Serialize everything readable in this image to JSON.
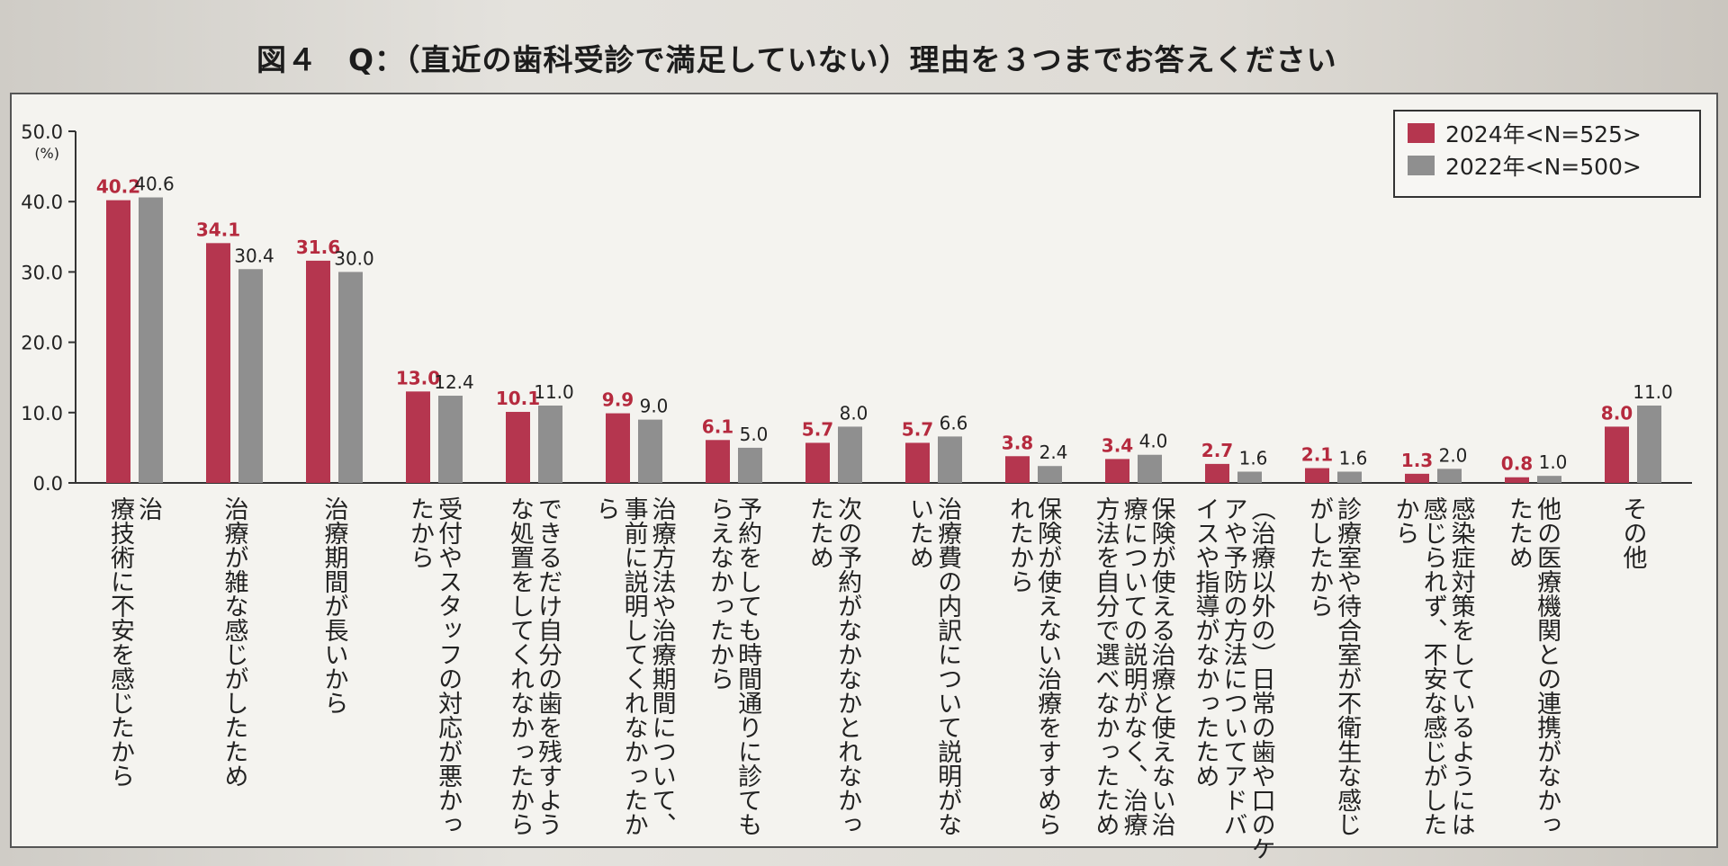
{
  "title": "図４　Q：（直近の歯科受診で満足していない）理由を３つまでお答えください",
  "colors": {
    "series_2024": "#b5364f",
    "series_2022": "#8f8f8f",
    "label_2024": "#b52a3e"
  },
  "chart_data": {
    "type": "bar",
    "ylim": [
      0,
      50
    ],
    "y_unit": "(%)",
    "yticks": [
      "50.0",
      "40.0",
      "30.0",
      "20.0",
      "10.0",
      "0.0"
    ],
    "legend_position": "top-right",
    "categories": [
      "治療技術に不安を感じたから",
      "治療が雑な感じがしたため",
      "治療期間が長いから",
      "受付やスタッフの対応が悪かったから",
      "できるだけ自分の歯を残すような処置をしてくれなかったから",
      "治療方法や治療期間について、事前に説明してくれなかったから",
      "予約をしても時間通りに診てもらえなかったから",
      "次の予約がなかなかとれなかったため",
      "治療費の内訳について説明がないため",
      "保険が使えない治療をすすめられたから",
      "保険が使える治療と使えない治療についての説明がなく、治療方法を自分で選べなかったため",
      "（治療以外の）日常の歯や口のケアや予防の方法についてアドバイスや指導がなかったため",
      "診療室や待合室が不衛生な感じがしたから",
      "感染症対策をしているようには感じられず、不安な感じがしたから",
      "他の医療機関との連携がなかったため",
      "その他"
    ],
    "series": [
      {
        "name": "2024年<N=525>",
        "values": [
          40.2,
          34.1,
          31.6,
          13.0,
          10.1,
          9.9,
          6.1,
          5.7,
          5.7,
          3.8,
          3.4,
          2.7,
          2.1,
          1.3,
          0.8,
          8.0
        ]
      },
      {
        "name": "2022年<N=500>",
        "values": [
          40.6,
          30.4,
          30.0,
          12.4,
          11.0,
          9.0,
          5.0,
          8.0,
          6.6,
          2.4,
          4.0,
          1.6,
          1.6,
          2.0,
          1.0,
          11.0
        ]
      }
    ]
  },
  "labels_display": [
    "治\n療技術に不安を感じたから",
    "治療が雑な感じがしたため",
    "治療期間が長いから",
    "受付やスタッフの対応が悪かっ\nたから",
    "できるだけ自分の歯を残すよう\nな処置をしてくれなかったから",
    "治療方法や治療期間について、\n事前に説明してくれなかったか\nら",
    "予約をしても時間通りに診ても\nらえなかったから",
    "次の予約がなかなかとれなかっ\nたため",
    "治療費の内訳について説明がな\nいため",
    "保険が使えない治療をすすめら\nれたから",
    "保険が使える治療と使えない治\n療についての説明がなく、治療\n方法を自分で選べなかったため",
    "（治療以外の）日常の歯や口のケ\nアや予防の方法についてアドバ\nイスや指導がなかったため",
    "診療室や待合室が不衛生な感じ\nがしたから",
    "感染症対策をしているようには\n感じられず、不安な感じがした\nから",
    "他の医療機関との連携がなかっ\nたため",
    "その他"
  ]
}
